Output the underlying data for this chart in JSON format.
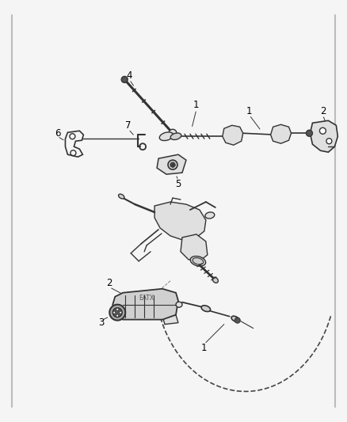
{
  "bg_color": "#f5f5f5",
  "fig_width": 4.38,
  "fig_height": 5.33,
  "dpi": 100,
  "line_color": "#333333",
  "label_color": "#000000",
  "label_fontsize": 8.5,
  "border_color": "#888888",
  "part_fill": "#e0e0e0",
  "part_fill2": "#d0d0d0",
  "dark_fill": "#555555",
  "mid_fill": "#aaaaaa",
  "leader_lw": 0.7,
  "part_lw": 1.0
}
